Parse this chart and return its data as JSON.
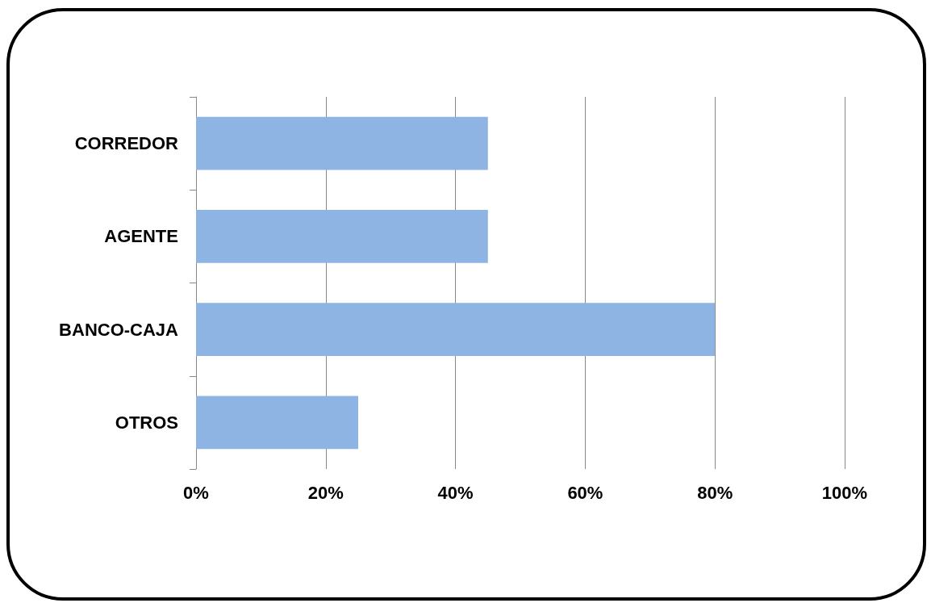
{
  "chart_data": {
    "type": "bar",
    "orientation": "horizontal",
    "categories": [
      "CORREDOR",
      "AGENTE",
      "BANCO-CAJA",
      "OTROS"
    ],
    "values": [
      45,
      45,
      80,
      25
    ],
    "color": "#8eb4e3",
    "xlim": [
      0,
      100
    ],
    "xticks": [
      {
        "value": 0,
        "label": "0%"
      },
      {
        "value": 20,
        "label": "20%"
      },
      {
        "value": 40,
        "label": "40%"
      },
      {
        "value": 60,
        "label": "60%"
      },
      {
        "value": 80,
        "label": "80%"
      },
      {
        "value": 100,
        "label": "100%"
      }
    ],
    "grid": "x"
  }
}
